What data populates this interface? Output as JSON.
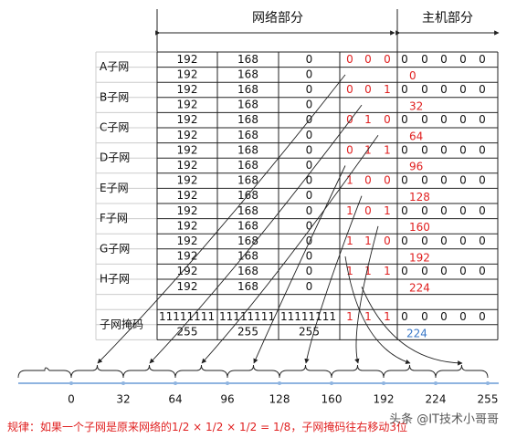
{
  "header": {
    "network": "网络部分",
    "host": "主机部分"
  },
  "subnets": [
    {
      "label": "A子网",
      "rows": [
        [
          "192",
          "168",
          "0"
        ],
        [
          "192",
          "168",
          "0"
        ]
      ],
      "bits": [
        "0",
        "0",
        "0"
      ],
      "host_bits": [
        "0",
        "0",
        "0",
        "0",
        "0"
      ],
      "value": "0"
    },
    {
      "label": "B子网",
      "rows": [
        [
          "192",
          "168",
          "0"
        ],
        [
          "192",
          "168",
          "0"
        ]
      ],
      "bits": [
        "0",
        "0",
        "1"
      ],
      "host_bits": [
        "0",
        "0",
        "0",
        "0",
        "0"
      ],
      "value": "32"
    },
    {
      "label": "C子网",
      "rows": [
        [
          "192",
          "168",
          "0"
        ],
        [
          "192",
          "168",
          "0"
        ]
      ],
      "bits": [
        "0",
        "1",
        "0"
      ],
      "host_bits": [
        "0",
        "0",
        "0",
        "0",
        "0"
      ],
      "value": "64"
    },
    {
      "label": "D子网",
      "rows": [
        [
          "192",
          "168",
          "0"
        ],
        [
          "192",
          "168",
          "0"
        ]
      ],
      "bits": [
        "0",
        "1",
        "1"
      ],
      "host_bits": [
        "0",
        "0",
        "0",
        "0",
        "0"
      ],
      "value": "96"
    },
    {
      "label": "E子网",
      "rows": [
        [
          "192",
          "168",
          "0"
        ],
        [
          "192",
          "168",
          "0"
        ]
      ],
      "bits": [
        "1",
        "0",
        "0"
      ],
      "host_bits": [
        "0",
        "0",
        "0",
        "0",
        "0"
      ],
      "value": "128"
    },
    {
      "label": "F子网",
      "rows": [
        [
          "192",
          "168",
          "0"
        ],
        [
          "192",
          "168",
          "0"
        ]
      ],
      "bits": [
        "1",
        "0",
        "1"
      ],
      "host_bits": [
        "0",
        "0",
        "0",
        "0",
        "0"
      ],
      "value": "160"
    },
    {
      "label": "G子网",
      "rows": [
        [
          "192",
          "168",
          "0"
        ],
        [
          "192",
          "168",
          "0"
        ]
      ],
      "bits": [
        "1",
        "1",
        "0"
      ],
      "host_bits": [
        "0",
        "0",
        "0",
        "0",
        "0"
      ],
      "value": "192"
    },
    {
      "label": "H子网",
      "rows": [
        [
          "192",
          "168",
          "0"
        ],
        [
          "192",
          "168",
          "0"
        ]
      ],
      "bits": [
        "1",
        "1",
        "1"
      ],
      "host_bits": [
        "0",
        "0",
        "0",
        "0",
        "0"
      ],
      "value": "224"
    }
  ],
  "mask": {
    "label": "子网掩码",
    "rows": [
      [
        "11111111",
        "11111111",
        "11111111"
      ],
      [
        "255",
        "255",
        "255"
      ]
    ],
    "bits": [
      "1",
      "1",
      "1"
    ],
    "host_bits": [
      "0",
      "0",
      "0",
      "0",
      "0"
    ],
    "value": "224"
  },
  "number_line": [
    "0",
    "32",
    "64",
    "96",
    "128",
    "160",
    "192",
    "224",
    "255"
  ],
  "footer": {
    "prefix": "规律：如果一个子网是原来网络的",
    "formula": "1/2 × 1/2 × 1/2 = 1/8",
    "suffix": "，子网掩码往右移动3位"
  },
  "watermark": "头条 @IT技术小哥哥"
}
